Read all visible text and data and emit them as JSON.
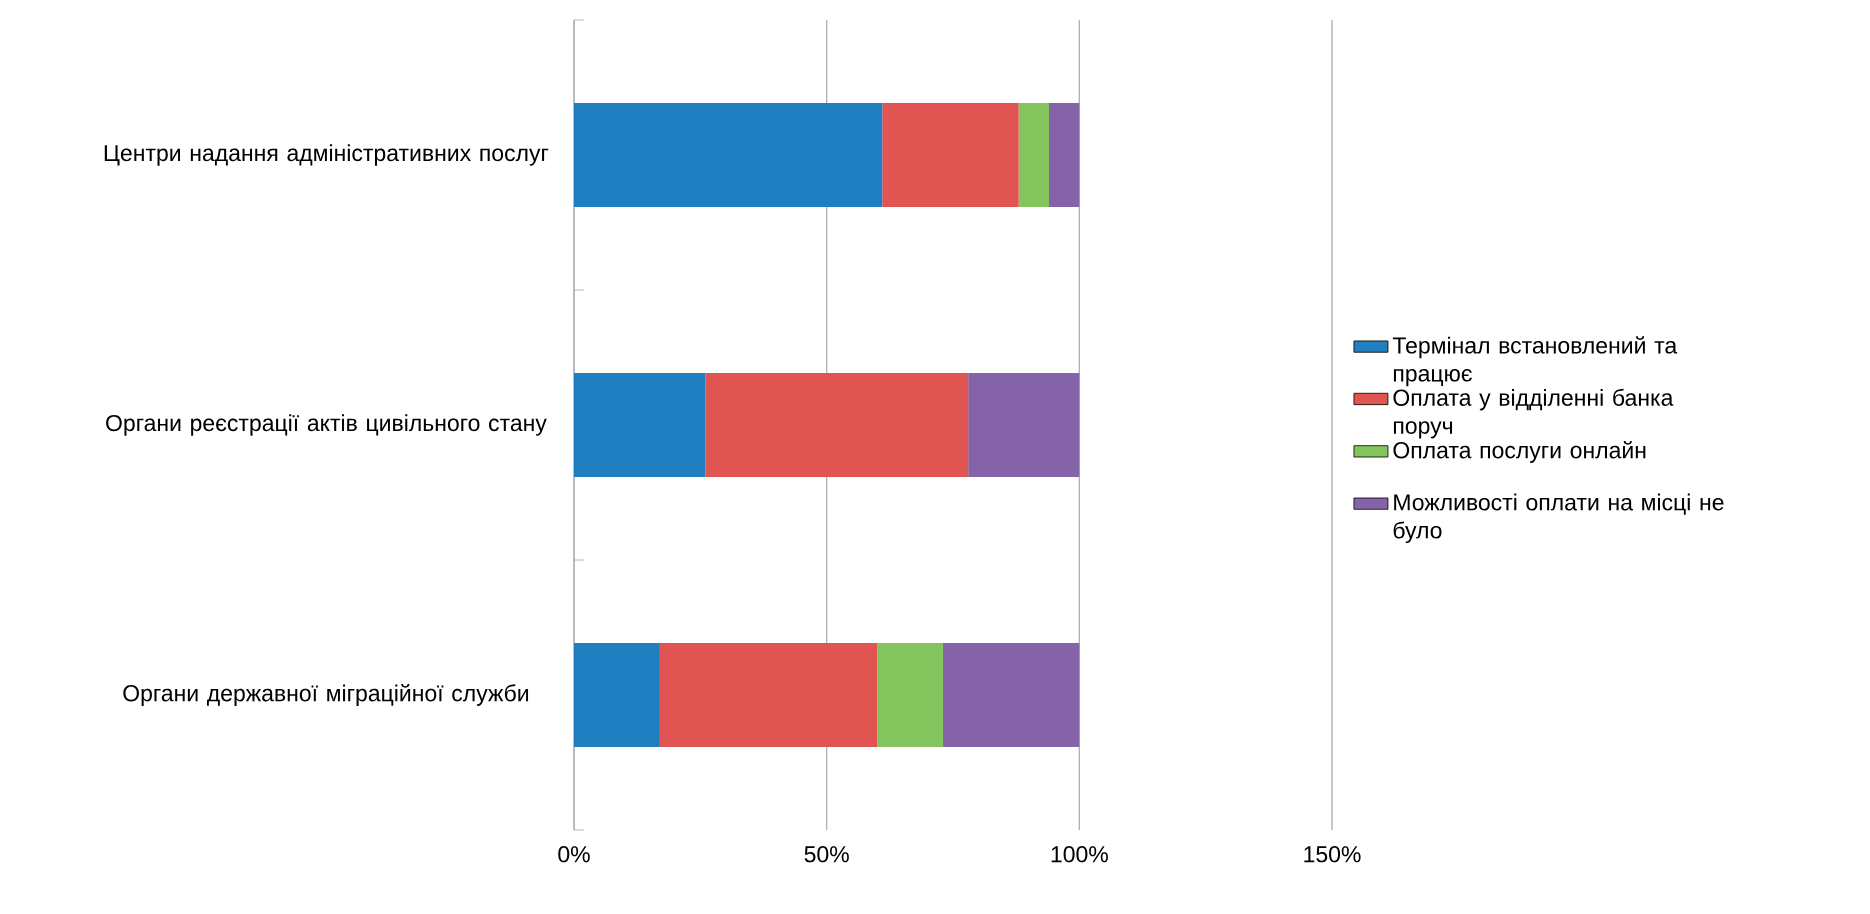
{
  "chart_data": {
    "type": "bar",
    "orientation": "horizontal",
    "stacked": true,
    "categories": [
      "Центри  надання адміністративних послуг",
      "Органи реєстрації актів цивільного стану",
      "Органи державної міграційної служби"
    ],
    "series": [
      {
        "name": "Термінал встановлений та працює",
        "color": "#1f7fc0",
        "values": [
          61,
          26,
          17
        ]
      },
      {
        "name": "Оплата у відділенні банка поруч",
        "color": "#e05451",
        "values": [
          27,
          52,
          43
        ]
      },
      {
        "name": "Оплата послуги онлайн",
        "color": "#84c45c",
        "values": [
          6,
          0,
          13
        ]
      },
      {
        "name": "Можливості оплати на місці не було",
        "color": "#8463a8",
        "values": [
          6,
          22,
          27
        ]
      }
    ],
    "xlim": [
      0,
      150
    ],
    "xticks": [
      {
        "value": 0,
        "label": "0%"
      },
      {
        "value": 50,
        "label": "50%"
      },
      {
        "value": 100,
        "label": "100%"
      },
      {
        "value": 150,
        "label": "150%"
      }
    ],
    "grid": "x",
    "legend": "right"
  }
}
